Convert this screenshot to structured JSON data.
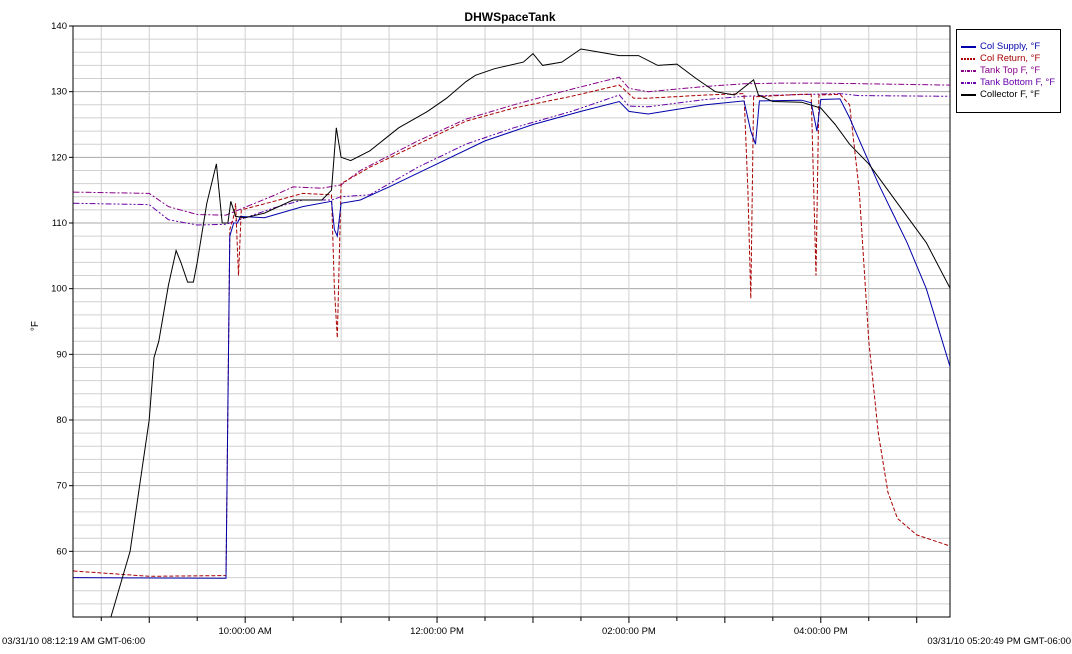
{
  "chart_data": {
    "type": "line",
    "title": "DHWSpaceTank",
    "ylabel": "°F",
    "xlabel": "",
    "x_start_label": "03/31/10 08:12:19 AM GMT-06:00",
    "x_end_label": "03/31/10 05:20:49 PM GMT-06:00",
    "x_start_hours": 8.2053,
    "x_end_hours": 17.3469,
    "ylim": [
      50,
      140
    ],
    "y_ticks": [
      60,
      70,
      80,
      90,
      100,
      110,
      120,
      130,
      140
    ],
    "x_ticks": [
      {
        "hours": 10,
        "label": "10:00:00 AM"
      },
      {
        "hours": 12,
        "label": "12:00:00 PM"
      },
      {
        "hours": 14,
        "label": "02:00:00 PM"
      },
      {
        "hours": 16,
        "label": "04:00:00 PM"
      }
    ],
    "grid": true,
    "legend_position": "right",
    "series": [
      {
        "name": "Col Supply, °F",
        "color": "#0000aa",
        "style": "solid",
        "points": [
          [
            8.21,
            56
          ],
          [
            9.8,
            55.9
          ],
          [
            9.84,
            108
          ],
          [
            9.88,
            110
          ],
          [
            9.92,
            110
          ],
          [
            9.95,
            111
          ],
          [
            10.2,
            110.8
          ],
          [
            10.6,
            112.5
          ],
          [
            10.9,
            113.3
          ],
          [
            10.93,
            109
          ],
          [
            10.96,
            108
          ],
          [
            11.0,
            113
          ],
          [
            11.2,
            113.5
          ],
          [
            11.5,
            115.5
          ],
          [
            12.0,
            119
          ],
          [
            12.5,
            122.5
          ],
          [
            13.0,
            125
          ],
          [
            13.5,
            127
          ],
          [
            13.9,
            128.5
          ],
          [
            14.0,
            127
          ],
          [
            14.2,
            126.6
          ],
          [
            14.8,
            128
          ],
          [
            15.2,
            128.6
          ],
          [
            15.27,
            124
          ],
          [
            15.32,
            122
          ],
          [
            15.36,
            128.6
          ],
          [
            15.8,
            128.7
          ],
          [
            15.9,
            128.3
          ],
          [
            15.96,
            124
          ],
          [
            16.0,
            128.8
          ],
          [
            16.2,
            128.9
          ],
          [
            16.3,
            126
          ],
          [
            16.6,
            116
          ],
          [
            16.9,
            107
          ],
          [
            17.1,
            100
          ],
          [
            17.35,
            88
          ]
        ]
      },
      {
        "name": "Col Return, °F",
        "color": "#aa0000",
        "style": "dashed",
        "points": [
          [
            8.21,
            57
          ],
          [
            9.0,
            56.2
          ],
          [
            9.8,
            56.3
          ],
          [
            9.84,
            109
          ],
          [
            9.88,
            111
          ],
          [
            9.9,
            113
          ],
          [
            9.93,
            102
          ],
          [
            9.96,
            112
          ],
          [
            10.3,
            113.3
          ],
          [
            10.6,
            114.5
          ],
          [
            10.9,
            114.3
          ],
          [
            10.93,
            100
          ],
          [
            10.96,
            92.5
          ],
          [
            11.0,
            116
          ],
          [
            11.3,
            118.5
          ],
          [
            11.8,
            122
          ],
          [
            12.3,
            125.5
          ],
          [
            12.8,
            127.5
          ],
          [
            13.4,
            129.3
          ],
          [
            13.9,
            131
          ],
          [
            14.05,
            129
          ],
          [
            14.2,
            129
          ],
          [
            14.8,
            129.5
          ],
          [
            15.2,
            129.7
          ],
          [
            15.24,
            115
          ],
          [
            15.27,
            98.5
          ],
          [
            15.3,
            129.2
          ],
          [
            15.8,
            129.6
          ],
          [
            15.9,
            129.6
          ],
          [
            15.95,
            102
          ],
          [
            15.98,
            129.5
          ],
          [
            16.2,
            129.6
          ],
          [
            16.3,
            128
          ],
          [
            16.4,
            115
          ],
          [
            16.5,
            92
          ],
          [
            16.6,
            78
          ],
          [
            16.7,
            69
          ],
          [
            16.8,
            65
          ],
          [
            17.0,
            62.5
          ],
          [
            17.35,
            60.8
          ]
        ]
      },
      {
        "name": "Tank Top F, °F",
        "color": "#880088",
        "style": "dashdot",
        "points": [
          [
            8.21,
            114.7
          ],
          [
            9.0,
            114.5
          ],
          [
            9.2,
            112.5
          ],
          [
            9.5,
            111.3
          ],
          [
            9.8,
            111.2
          ],
          [
            10.3,
            114.2
          ],
          [
            10.5,
            115.5
          ],
          [
            10.8,
            115.3
          ],
          [
            11.0,
            115.8
          ],
          [
            11.2,
            118
          ],
          [
            11.8,
            122.5
          ],
          [
            12.3,
            125.8
          ],
          [
            12.8,
            128
          ],
          [
            13.3,
            130
          ],
          [
            13.9,
            132.2
          ],
          [
            14.0,
            130.5
          ],
          [
            14.2,
            130
          ],
          [
            14.8,
            130.8
          ],
          [
            15.2,
            131.2
          ],
          [
            15.6,
            131.3
          ],
          [
            16.0,
            131.3
          ],
          [
            17.35,
            131
          ]
        ]
      },
      {
        "name": "Tank Bottom F, °F",
        "color": "#6600aa",
        "style": "dashdotdot",
        "points": [
          [
            8.21,
            113
          ],
          [
            9.0,
            112.8
          ],
          [
            9.2,
            110.5
          ],
          [
            9.5,
            109.7
          ],
          [
            9.8,
            109.8
          ],
          [
            10.3,
            112.3
          ],
          [
            10.6,
            113.5
          ],
          [
            10.9,
            113.5
          ],
          [
            11.0,
            114
          ],
          [
            11.3,
            114.3
          ],
          [
            11.8,
            118.5
          ],
          [
            12.3,
            122
          ],
          [
            12.8,
            124.5
          ],
          [
            13.4,
            127
          ],
          [
            13.9,
            129.5
          ],
          [
            14.0,
            127.8
          ],
          [
            14.2,
            127.7
          ],
          [
            14.8,
            128.8
          ],
          [
            15.2,
            129.3
          ],
          [
            15.6,
            129.5
          ],
          [
            16.2,
            129.7
          ],
          [
            16.4,
            129.4
          ],
          [
            17.35,
            129.3
          ]
        ]
      },
      {
        "name": "Collector F, °F",
        "color": "#000000",
        "style": "solid",
        "points": [
          [
            8.6,
            50
          ],
          [
            8.8,
            60
          ],
          [
            8.9,
            70
          ],
          [
            9.0,
            80
          ],
          [
            9.05,
            89.5
          ],
          [
            9.1,
            92
          ],
          [
            9.2,
            100.5
          ],
          [
            9.28,
            105.8
          ],
          [
            9.33,
            104
          ],
          [
            9.4,
            101
          ],
          [
            9.46,
            101
          ],
          [
            9.5,
            104
          ],
          [
            9.6,
            113
          ],
          [
            9.7,
            119
          ],
          [
            9.76,
            110
          ],
          [
            9.82,
            110
          ],
          [
            9.85,
            113.3
          ],
          [
            9.9,
            111
          ],
          [
            10.0,
            110.8
          ],
          [
            10.2,
            111.5
          ],
          [
            10.5,
            113.5
          ],
          [
            10.8,
            113.5
          ],
          [
            10.9,
            115
          ],
          [
            10.95,
            124.5
          ],
          [
            11.0,
            120
          ],
          [
            11.1,
            119.5
          ],
          [
            11.3,
            121
          ],
          [
            11.6,
            124.5
          ],
          [
            11.9,
            127
          ],
          [
            12.1,
            129
          ],
          [
            12.3,
            131.5
          ],
          [
            12.4,
            132.5
          ],
          [
            12.6,
            133.5
          ],
          [
            12.9,
            134.5
          ],
          [
            13.0,
            135.8
          ],
          [
            13.1,
            134
          ],
          [
            13.3,
            134.5
          ],
          [
            13.5,
            136.5
          ],
          [
            13.7,
            136
          ],
          [
            13.9,
            135.5
          ],
          [
            14.1,
            135.5
          ],
          [
            14.3,
            134
          ],
          [
            14.5,
            134.2
          ],
          [
            14.7,
            132
          ],
          [
            14.9,
            130
          ],
          [
            15.1,
            129.5
          ],
          [
            15.3,
            131.8
          ],
          [
            15.35,
            129.5
          ],
          [
            15.5,
            128.5
          ],
          [
            15.8,
            128.4
          ],
          [
            16.0,
            127.5
          ],
          [
            16.15,
            125
          ],
          [
            16.3,
            122
          ],
          [
            16.5,
            119
          ],
          [
            16.8,
            113
          ],
          [
            17.1,
            107
          ],
          [
            17.35,
            100
          ]
        ]
      }
    ]
  }
}
